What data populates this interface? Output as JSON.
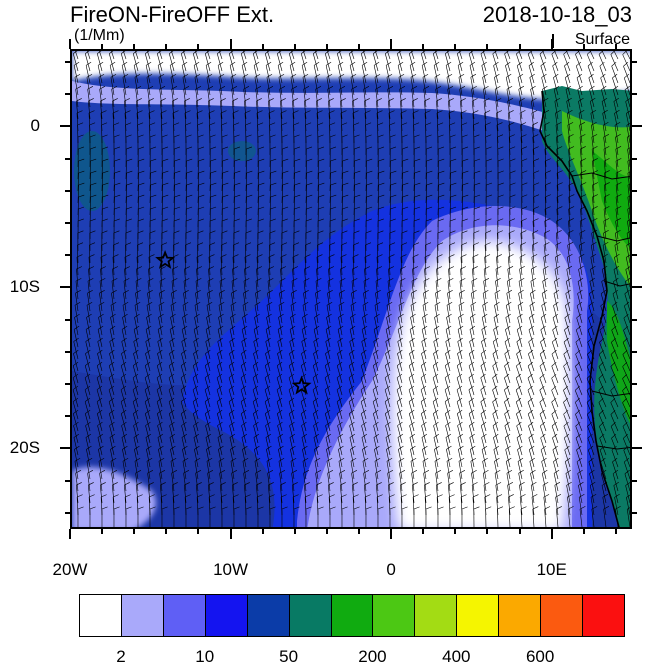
{
  "title": "FireON-FireOFF Ext.",
  "datetime": "2018-10-18_03",
  "units": "(1/Mm)",
  "level": "Surface",
  "x_axis": {
    "labels": [
      "20W",
      "10W",
      "0",
      "10E"
    ]
  },
  "y_axis": {
    "labels": [
      "0",
      "10S",
      "20S"
    ]
  },
  "colorbar": {
    "colors": [
      "#ffffff",
      "#a9a9fa",
      "#5f5ff5",
      "#1414f0",
      "#0b3ca8",
      "#087a64",
      "#10ab10",
      "#4cc814",
      "#a3dc14",
      "#f5f500",
      "#fba900",
      "#fb5a10",
      "#fb1010"
    ],
    "labels": [
      "2",
      "10",
      "50",
      "200",
      "400",
      "600"
    ]
  },
  "markers": [
    {
      "name": "star-marker-1",
      "lon": -14.2,
      "lat": -8.2
    },
    {
      "name": "star-marker-2",
      "lon": -5.7,
      "lat": -16.0
    }
  ]
}
